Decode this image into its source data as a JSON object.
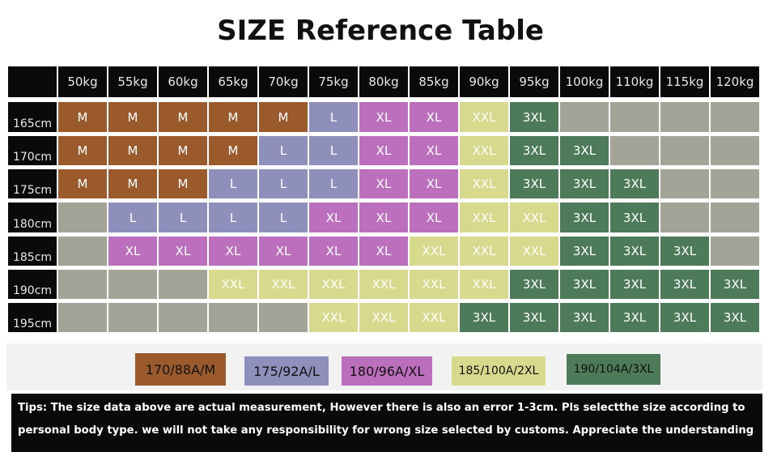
{
  "title": "SIZE Reference Table",
  "colors": {
    "M": "#9b5a2c",
    "L": "#8e8fbb",
    "XL": "#bb6fbd",
    "XXL": "#d7d98c",
    "3XL": "#4d7a59",
    "empty": "#a3a497",
    "header_bg": "#0a0a0a",
    "header_text": "#e8e8e8"
  },
  "weights": [
    "50kg",
    "55kg",
    "60kg",
    "65kg",
    "70kg",
    "75kg",
    "80kg",
    "85kg",
    "90kg",
    "95kg",
    "100kg",
    "110kg",
    "115kg",
    "120kg"
  ],
  "rows": [
    {
      "height": "165cm",
      "sizes": [
        "M",
        "M",
        "M",
        "M",
        "M",
        "L",
        "XL",
        "XL",
        "XXL",
        "3XL",
        "",
        "",
        "",
        ""
      ]
    },
    {
      "height": "170cm",
      "sizes": [
        "M",
        "M",
        "M",
        "M",
        "L",
        "L",
        "XL",
        "XL",
        "XXL",
        "3XL",
        "3XL",
        "",
        "",
        ""
      ]
    },
    {
      "height": "175cm",
      "sizes": [
        "M",
        "M",
        "M",
        "L",
        "L",
        "L",
        "XL",
        "XL",
        "XXL",
        "3XL",
        "3XL",
        "3XL",
        "",
        ""
      ]
    },
    {
      "height": "180cm",
      "sizes": [
        "",
        "L",
        "L",
        "L",
        "L",
        "XL",
        "XL",
        "XL",
        "XXL",
        "XXL",
        "3XL",
        "3XL",
        "",
        ""
      ]
    },
    {
      "height": "185cm",
      "sizes": [
        "",
        "XL",
        "XL",
        "XL",
        "XL",
        "XL",
        "XL",
        "XXL",
        "XXL",
        "XXL",
        "3XL",
        "3XL",
        "3XL",
        ""
      ]
    },
    {
      "height": "190cm",
      "sizes": [
        "",
        "",
        "",
        "XXL",
        "XXL",
        "XXL",
        "XXL",
        "XXL",
        "XXL",
        "3XL",
        "3XL",
        "3XL",
        "3XL",
        "3XL"
      ]
    },
    {
      "height": "195cm",
      "sizes": [
        "",
        "",
        "",
        "",
        "",
        "XXL",
        "XXL",
        "XXL",
        "3XL",
        "3XL",
        "3XL",
        "3XL",
        "3XL",
        "3XL"
      ]
    }
  ],
  "legend": [
    {
      "label": "170/88A/M",
      "size": "M"
    },
    {
      "label": "175/92A/L",
      "size": "L"
    },
    {
      "label": "180/96A/XL",
      "size": "XL"
    },
    {
      "label": "185/100A/2XL",
      "size": "XXL"
    },
    {
      "label": "190/104A/3XL",
      "size": "3XL"
    }
  ],
  "tips": "Tips: The size data above are actual measurement, However there is also an error 1-3cm. Pls selectthe size according to personal body type. we will not take any responsibility for wrong size selected by customs. Appreciate the understanding"
}
